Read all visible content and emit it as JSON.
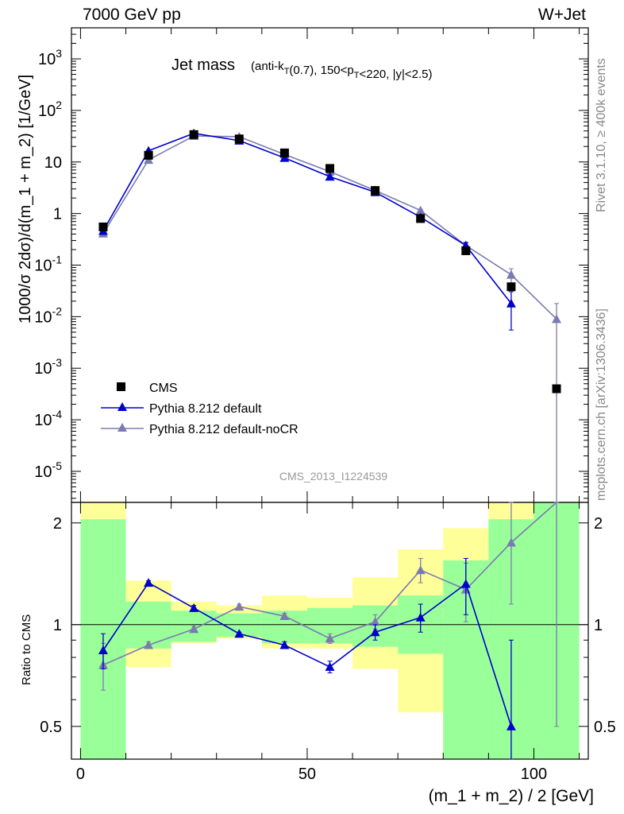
{
  "header": {
    "energy": "7000 GeV pp",
    "process": "W+Jet"
  },
  "side": {
    "rivet": "Rivet 3.1.10, ≥ 400k events",
    "mcplots": "mcplots.cern.ch [arXiv:1306.3436]"
  },
  "title": {
    "main": "Jet mass",
    "sub": "(anti-k_T(0.7), 150<p_T<220, |y|<2.5)"
  },
  "watermark": "CMS_2013_I1224539",
  "axes": {
    "ylabel_top": "1000/σ 2dσ)/d(m_1 + m_2) [1/GeV]",
    "ylabel_bottom": "Ratio to CMS",
    "xlabel": "(m_1 + m_2) / 2 [GeV]"
  },
  "legend": {
    "cms": "CMS",
    "default": "Pythia 8.212 default",
    "nocr": "Pythia 8.212 default-noCR"
  },
  "colors": {
    "cms": "#000000",
    "default": "#0000cc",
    "nocr": "#7b7bb0",
    "band_inner": "#99ff99",
    "band_outer": "#ffff99"
  },
  "chart_data": [
    {
      "type": "scatter",
      "panel": "main",
      "yscale": "log",
      "xlim": [
        -2,
        112
      ],
      "ylim": [
        2.5e-06,
        4000
      ],
      "x": [
        5,
        15,
        25,
        35,
        45,
        55,
        65,
        75,
        85,
        95,
        105
      ],
      "series": [
        {
          "name": "CMS",
          "values": [
            0.55,
            13.5,
            34,
            28,
            15,
            7.5,
            2.8,
            0.8,
            0.19,
            0.038,
            0.0004
          ]
        },
        {
          "name": "Pythia 8.212 default",
          "values": [
            0.46,
            16.5,
            36,
            26,
            12,
            5.2,
            2.6,
            0.85,
            0.24,
            0.018,
            null
          ],
          "err": [
            0.03,
            0.5,
            1,
            0.8,
            0.5,
            0.2,
            0.1,
            0.05,
            0.03,
            0.0125,
            null
          ]
        },
        {
          "name": "Pythia 8.212 default-noCR",
          "values": [
            0.41,
            11,
            32,
            31,
            14,
            6.5,
            2.8,
            1.15,
            0.24,
            0.065,
            0.009
          ],
          "err": [
            0.03,
            0.4,
            1,
            1,
            0.5,
            0.2,
            0.1,
            0.06,
            0.04,
            0.02,
            0.009
          ]
        }
      ],
      "yticks": [
        "10^{-5}",
        "10^{-4}",
        "10^{-3}",
        "10^{-2}",
        "10^{-1}",
        "1",
        "10",
        "10^{2}",
        "10^{3}"
      ]
    },
    {
      "type": "scatter",
      "panel": "ratio",
      "yscale": "log",
      "xlim": [
        -2,
        112
      ],
      "ylim": [
        0.4,
        2.3
      ],
      "x": [
        5,
        15,
        25,
        35,
        45,
        55,
        65,
        75,
        85,
        95,
        105
      ],
      "xticks": [
        "0",
        "50",
        "100"
      ],
      "yticks": [
        "0.5",
        "1",
        "2"
      ],
      "bands": {
        "edges": [
          0,
          10,
          20,
          30,
          40,
          50,
          60,
          70,
          80,
          90,
          100,
          110
        ],
        "inner_lo": [
          0.4,
          0.85,
          0.89,
          0.92,
          0.88,
          0.88,
          0.86,
          0.82,
          0.4,
          0.4,
          0.4
        ],
        "inner_hi": [
          2.05,
          1.17,
          1.1,
          1.08,
          1.1,
          1.12,
          1.14,
          1.22,
          1.55,
          2.05,
          2.3
        ],
        "outer_lo": [
          0.4,
          0.75,
          0.88,
          0.91,
          0.85,
          0.85,
          0.74,
          0.55,
          0.4,
          0.4,
          0.4
        ],
        "outer_hi": [
          2.3,
          1.35,
          1.17,
          1.14,
          1.22,
          1.2,
          1.38,
          1.67,
          1.93,
          2.3,
          2.3
        ]
      },
      "series": [
        {
          "name": "Pythia 8.212 default",
          "values": [
            0.84,
            1.33,
            1.12,
            0.94,
            0.87,
            0.75,
            0.95,
            1.05,
            1.32,
            0.5,
            null
          ],
          "err": [
            0.1,
            0.02,
            0.02,
            0.01,
            0.02,
            0.03,
            0.05,
            0.1,
            0.25,
            0.4,
            null
          ]
        },
        {
          "name": "Pythia 8.212 default-noCR",
          "values": [
            0.76,
            0.87,
            0.97,
            1.13,
            1.06,
            0.91,
            1.02,
            1.45,
            1.27,
            1.75,
            2.5
          ],
          "err": [
            0.12,
            0.02,
            0.02,
            0.02,
            0.02,
            0.03,
            0.05,
            0.12,
            0.25,
            0.6,
            2
          ]
        }
      ]
    }
  ]
}
